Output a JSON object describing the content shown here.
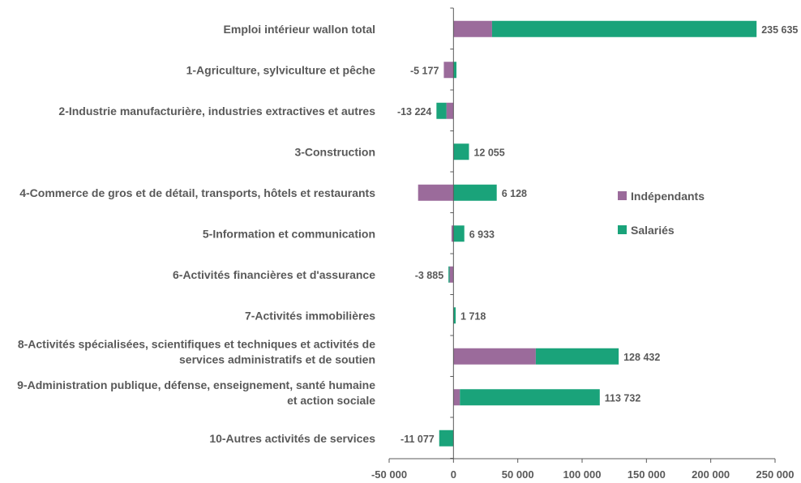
{
  "chart_data": {
    "type": "bar",
    "orientation": "horizontal",
    "stacked": true,
    "title": "",
    "xlabel": "",
    "ylabel": "",
    "xlim": [
      -50000,
      250000
    ],
    "x_ticks": [
      -50000,
      0,
      50000,
      100000,
      150000,
      200000,
      250000
    ],
    "x_tick_labels": [
      "-50 000",
      "0",
      "50 000",
      "100 000",
      "150 000",
      "200 000",
      "250 000"
    ],
    "grid": false,
    "legend_position": "right",
    "categories": [
      [
        "Emploi intérieur wallon total"
      ],
      [
        "1-Agriculture, sylviculture et pêche"
      ],
      [
        "2-Industrie manufacturière, industries extractives et autres"
      ],
      [
        "3-Construction"
      ],
      [
        "4-Commerce de gros et de détail, transports, hôtels et restaurants"
      ],
      [
        "5-Information et communication"
      ],
      [
        "6-Activités financières et d'assurance"
      ],
      [
        "7-Activités immobilières"
      ],
      [
        "8-Activités spécialisées, scientifiques et techniques et activités de",
        "services administratifs et de soutien"
      ],
      [
        "9-Administration publique, défense, enseignement, santé humaine",
        "et action sociale"
      ],
      [
        "10-Autres activités de services"
      ]
    ],
    "series": [
      {
        "name": "Indépendants",
        "color": "#9b6b9b",
        "values": [
          30000,
          -7500,
          -5500,
          0,
          -27500,
          -1500,
          -3000,
          0,
          64000,
          5000,
          0
        ]
      },
      {
        "name": "Salariés",
        "color": "#1aa37a",
        "values": [
          205635,
          2323,
          -7724,
          12055,
          33628,
          8433,
          -885,
          1718,
          64432,
          108732,
          -11077
        ]
      }
    ],
    "totals": [
      235635,
      -5177,
      -13224,
      12055,
      6128,
      6933,
      -3885,
      1718,
      128432,
      113732,
      -11077
    ],
    "total_labels": [
      "235 635",
      "-5 177",
      "-13 224",
      "12 055",
      "6 128",
      "6 933",
      "-3 885",
      "1 718",
      "128 432",
      "113 732",
      "-11 077"
    ]
  }
}
